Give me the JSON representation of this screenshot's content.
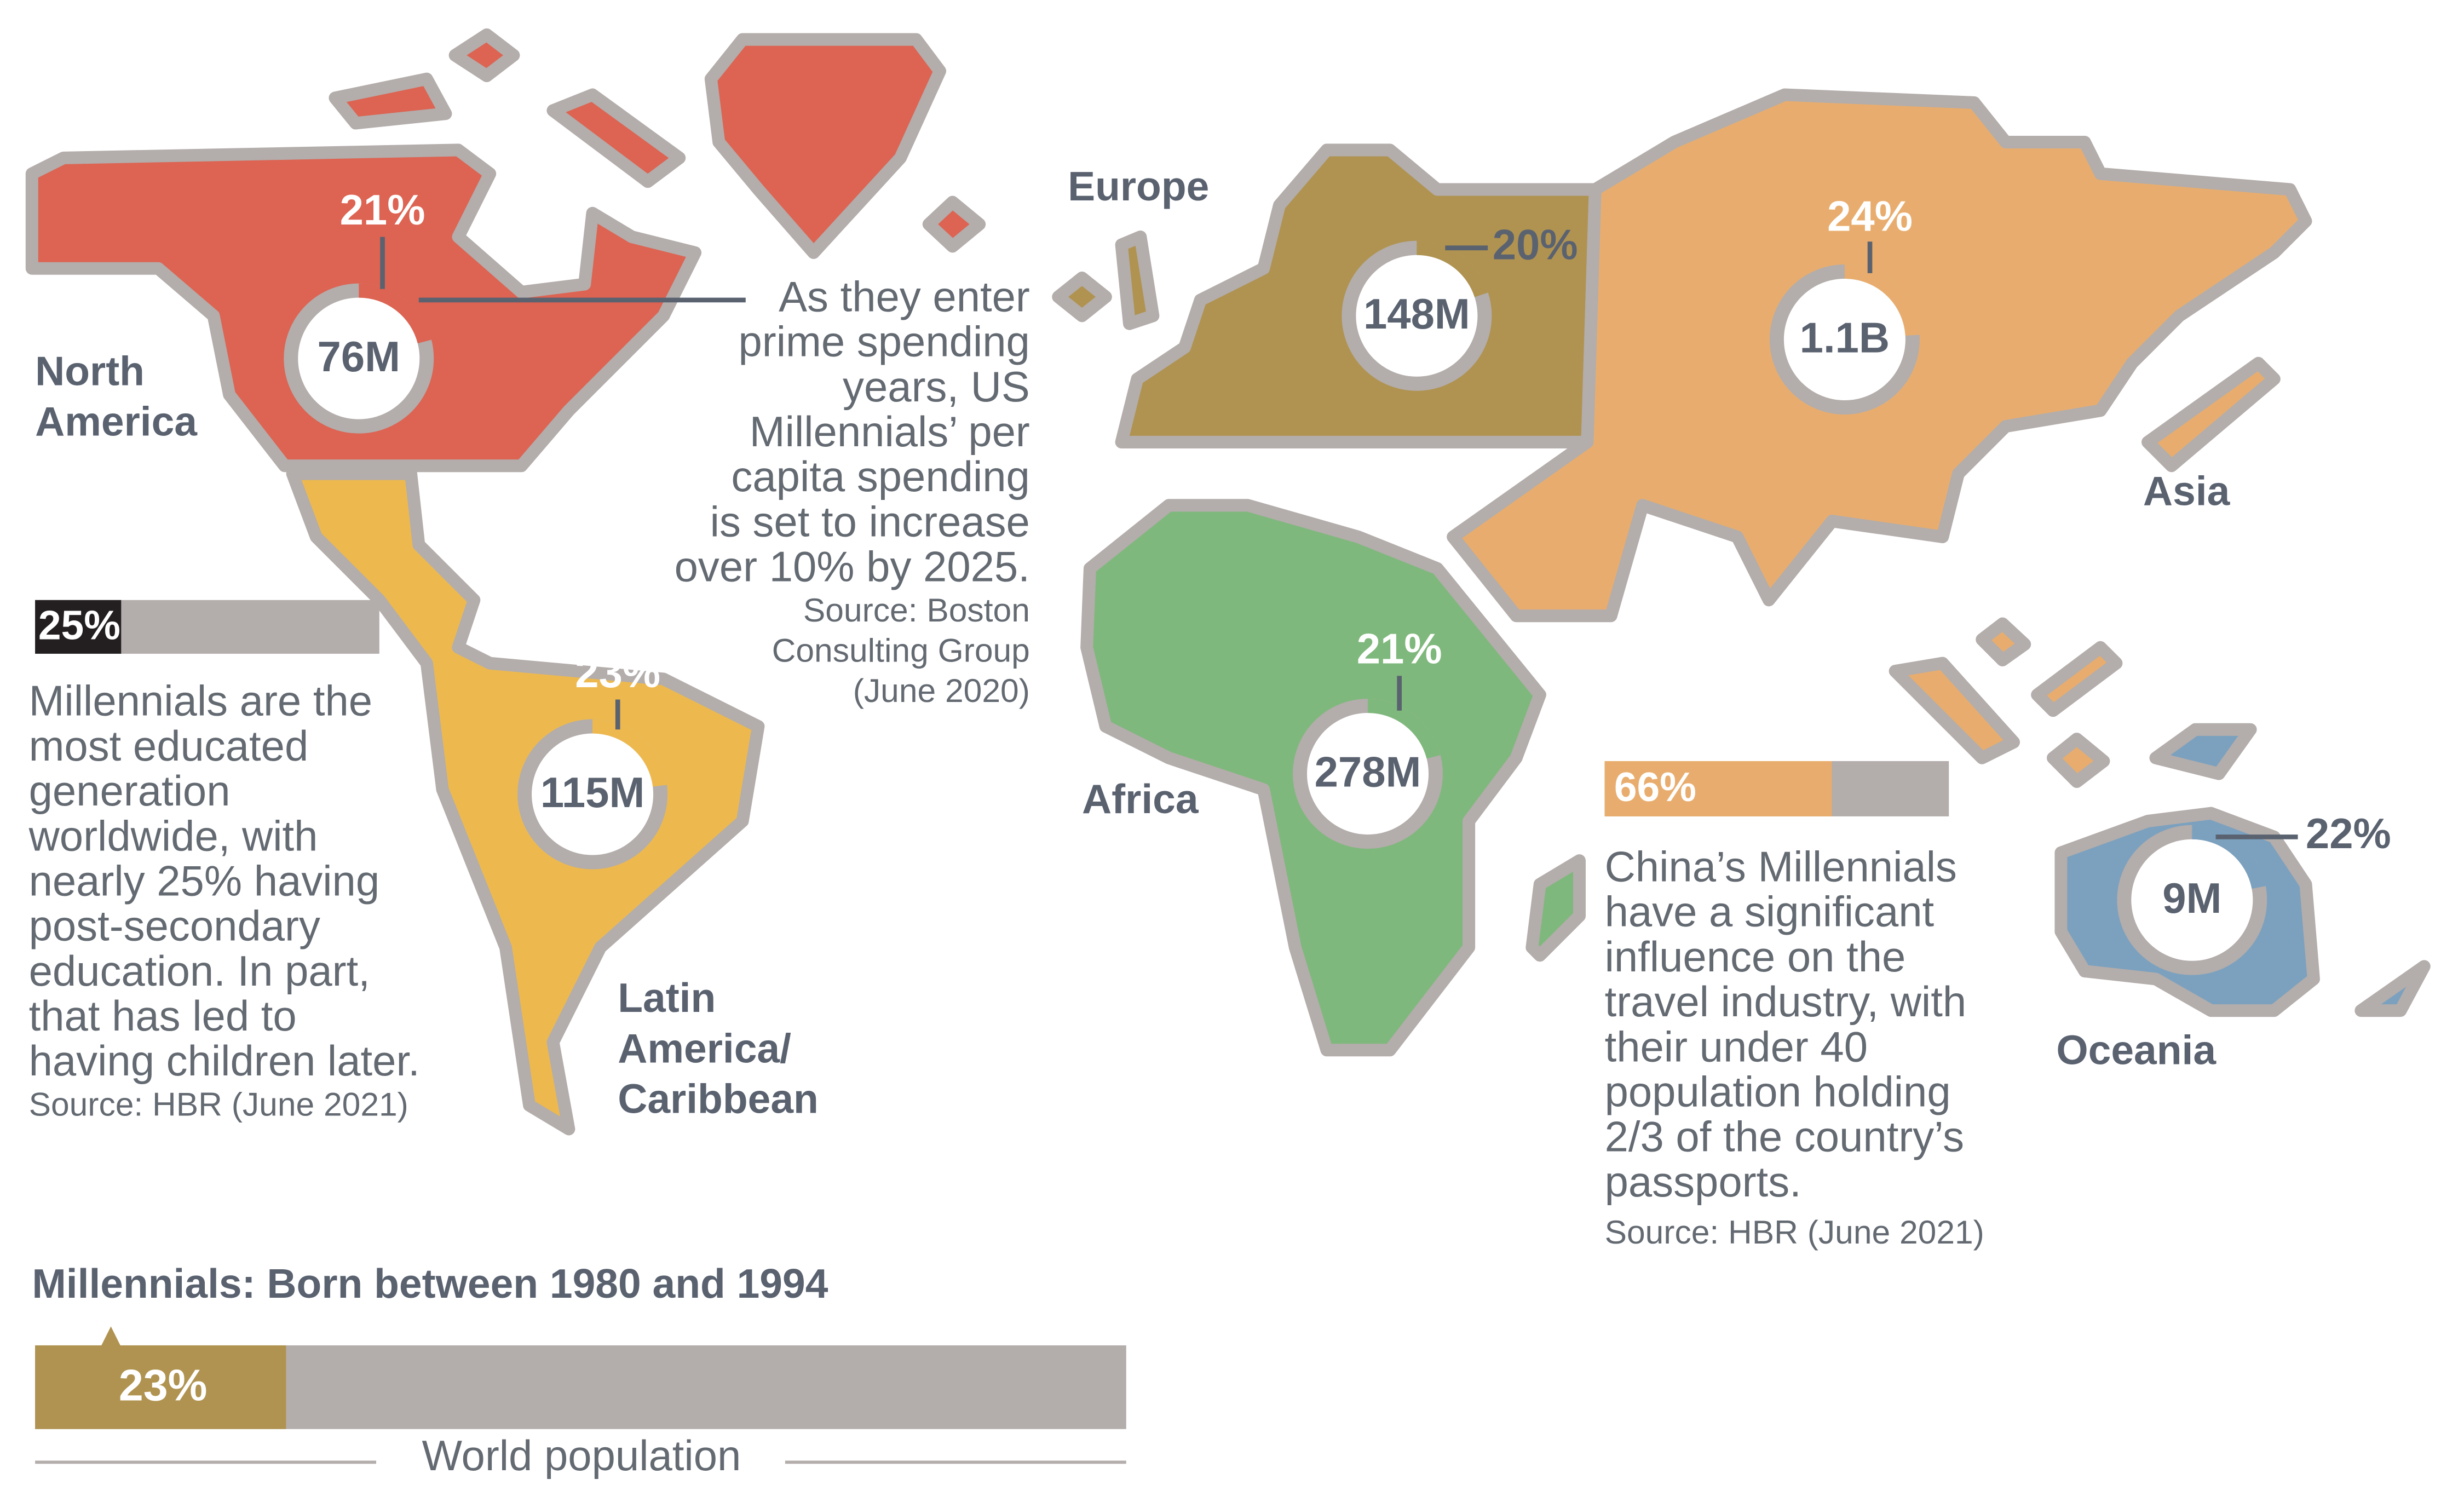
{
  "regions": [
    {
      "name_lines": [
        "North",
        "America"
      ],
      "population": "76M",
      "share": 21,
      "share_label": "21%",
      "color": "#dd6352"
    },
    {
      "name_lines": [
        "Latin",
        "America/",
        "Caribbean"
      ],
      "population": "115M",
      "share": 23,
      "share_label": "23%",
      "color": "#edb94f"
    },
    {
      "name_lines": [
        "Europe"
      ],
      "population": "148M",
      "share": 20,
      "share_label": "20%",
      "color": "#b09350"
    },
    {
      "name_lines": [
        "Asia"
      ],
      "population": "1.1B",
      "share": 24,
      "share_label": "24%",
      "color": "#e8ad6e"
    },
    {
      "name_lines": [
        "Africa"
      ],
      "population": "278M",
      "share": 21,
      "share_label": "21%",
      "color": "#7fb87c"
    },
    {
      "name_lines": [
        "Oceania"
      ],
      "population": "9M",
      "share": 22,
      "share_label": "22%",
      "color": "#7ba1bf"
    }
  ],
  "us_note": {
    "lines": [
      "As they enter",
      "prime spending",
      "years, US",
      "Millennials’ per",
      "capita spending",
      "is set to increase",
      "over 10% by 2025."
    ],
    "source_lines": [
      "Source: Boston",
      "Consulting Group",
      "(June 2020)"
    ]
  },
  "education": {
    "bar": {
      "value": 25,
      "label": "25%",
      "color": "#231f20"
    },
    "lines": [
      "Millennials are the",
      "most educated",
      "generation",
      "worldwide, with",
      "nearly 25% having",
      "post-secondary",
      "education. In part,",
      "that has led to",
      "having children later."
    ],
    "source": "Source: HBR (June 2021)"
  },
  "china": {
    "bar": {
      "value": 66,
      "label": "66%",
      "color": "#e8ad6e"
    },
    "lines": [
      "China’s Millennials",
      "have a significant",
      "influence on the",
      "travel industry, with",
      "their under 40",
      "population holding",
      "2/3 of the country’s",
      "passports."
    ],
    "source": "Source: HBR (June 2021)"
  },
  "world": {
    "title": "Millennials: Born between 1980 and 1994",
    "bar": {
      "value": 23,
      "label": "23%",
      "color": "#b09350"
    },
    "caption": "World population"
  }
}
